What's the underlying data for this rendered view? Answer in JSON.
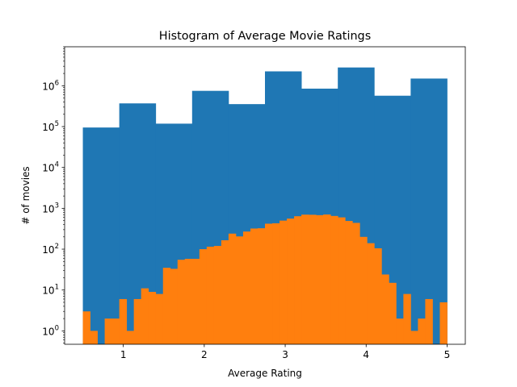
{
  "chart_data": {
    "type": "bar",
    "title": "Histogram of Average Movie Ratings",
    "xlabel": "Average Rating",
    "ylabel": "# of movies",
    "xlim": [
      0.275,
      5.225
    ],
    "ylim": [
      0.47,
      9000000
    ],
    "yscale": "log",
    "grid": false,
    "x_ticks": [
      {
        "value": 1,
        "label": "1"
      },
      {
        "value": 2,
        "label": "2"
      },
      {
        "value": 3,
        "label": "3"
      },
      {
        "value": 4,
        "label": "4"
      },
      {
        "value": 5,
        "label": "5"
      }
    ],
    "y_ticks": [
      {
        "value": 1,
        "base": "10",
        "exp": "0"
      },
      {
        "value": 10,
        "base": "10",
        "exp": "1"
      },
      {
        "value": 100,
        "base": "10",
        "exp": "2"
      },
      {
        "value": 1000,
        "base": "10",
        "exp": "3"
      },
      {
        "value": 10000,
        "base": "10",
        "exp": "4"
      },
      {
        "value": 100000,
        "base": "10",
        "exp": "5"
      },
      {
        "value": 1000000,
        "base": "10",
        "exp": "6"
      }
    ],
    "series": [
      {
        "color": "#1f77b4",
        "bin_edges": [
          0.5,
          0.95,
          1.4,
          1.85,
          2.3,
          2.75,
          3.2,
          3.65,
          4.1,
          4.55,
          5.0
        ],
        "values": [
          95000,
          370000,
          118000,
          750000,
          355000,
          2250000,
          850000,
          2800000,
          570000,
          1500000
        ]
      },
      {
        "color": "#ff7f0e",
        "bin_edges": [
          0.5,
          0.59,
          0.68,
          0.77,
          0.86,
          0.95,
          1.04,
          1.13,
          1.22,
          1.31,
          1.4,
          1.49,
          1.58,
          1.67,
          1.76,
          1.85,
          1.94,
          2.03,
          2.12,
          2.21,
          2.3,
          2.39,
          2.48,
          2.57,
          2.66,
          2.75,
          2.84,
          2.93,
          3.02,
          3.11,
          3.2,
          3.29,
          3.38,
          3.47,
          3.56,
          3.65,
          3.74,
          3.83,
          3.92,
          4.01,
          4.1,
          4.19,
          4.28,
          4.37,
          4.46,
          4.55,
          4.64,
          4.73,
          4.82,
          4.91,
          5.0
        ],
        "values": [
          3,
          1,
          0,
          2,
          2,
          6,
          1,
          6,
          11,
          9,
          8,
          35,
          33,
          55,
          58,
          58,
          100,
          115,
          120,
          165,
          240,
          205,
          270,
          320,
          325,
          420,
          430,
          500,
          560,
          640,
          700,
          695,
          680,
          705,
          650,
          600,
          490,
          440,
          200,
          140,
          105,
          24,
          15,
          2,
          8,
          1,
          2,
          6,
          0,
          5
        ]
      }
    ]
  }
}
